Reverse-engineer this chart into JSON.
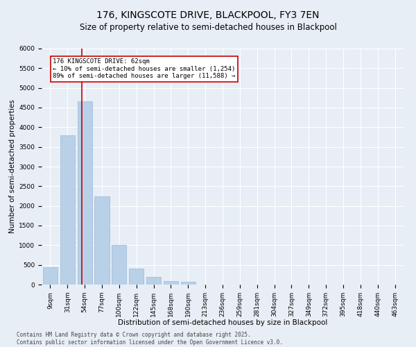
{
  "title1": "176, KINGSCOTE DRIVE, BLACKPOOL, FY3 7EN",
  "title2": "Size of property relative to semi-detached houses in Blackpool",
  "xlabel": "Distribution of semi-detached houses by size in Blackpool",
  "ylabel": "Number of semi-detached properties",
  "categories": [
    "9sqm",
    "31sqm",
    "54sqm",
    "77sqm",
    "100sqm",
    "122sqm",
    "145sqm",
    "168sqm",
    "190sqm",
    "213sqm",
    "236sqm",
    "259sqm",
    "281sqm",
    "304sqm",
    "327sqm",
    "349sqm",
    "372sqm",
    "395sqm",
    "418sqm",
    "440sqm",
    "463sqm"
  ],
  "values": [
    450,
    3800,
    4650,
    2250,
    1000,
    400,
    200,
    90,
    70,
    0,
    0,
    0,
    0,
    0,
    0,
    0,
    0,
    0,
    0,
    0,
    0
  ],
  "bar_color": "#b8d0e8",
  "bar_edge_color": "#9ab8d8",
  "vline_x": 1.85,
  "vline_color": "#cc0000",
  "annotation_text": "176 KINGSCOTE DRIVE: 62sqm\n← 10% of semi-detached houses are smaller (1,254)\n89% of semi-detached houses are larger (11,588) →",
  "annotation_box_color": "#ffffff",
  "annotation_box_edge": "#cc0000",
  "ylim": [
    0,
    6000
  ],
  "yticks": [
    0,
    500,
    1000,
    1500,
    2000,
    2500,
    3000,
    3500,
    4000,
    4500,
    5000,
    5500,
    6000
  ],
  "background_color": "#e8eef5",
  "grid_color": "#ffffff",
  "footer": "Contains HM Land Registry data © Crown copyright and database right 2025.\nContains public sector information licensed under the Open Government Licence v3.0.",
  "title1_fontsize": 10,
  "title2_fontsize": 8.5,
  "axis_fontsize": 7.5,
  "tick_fontsize": 6.5,
  "annotation_fontsize": 6.5,
  "footer_fontsize": 5.5
}
